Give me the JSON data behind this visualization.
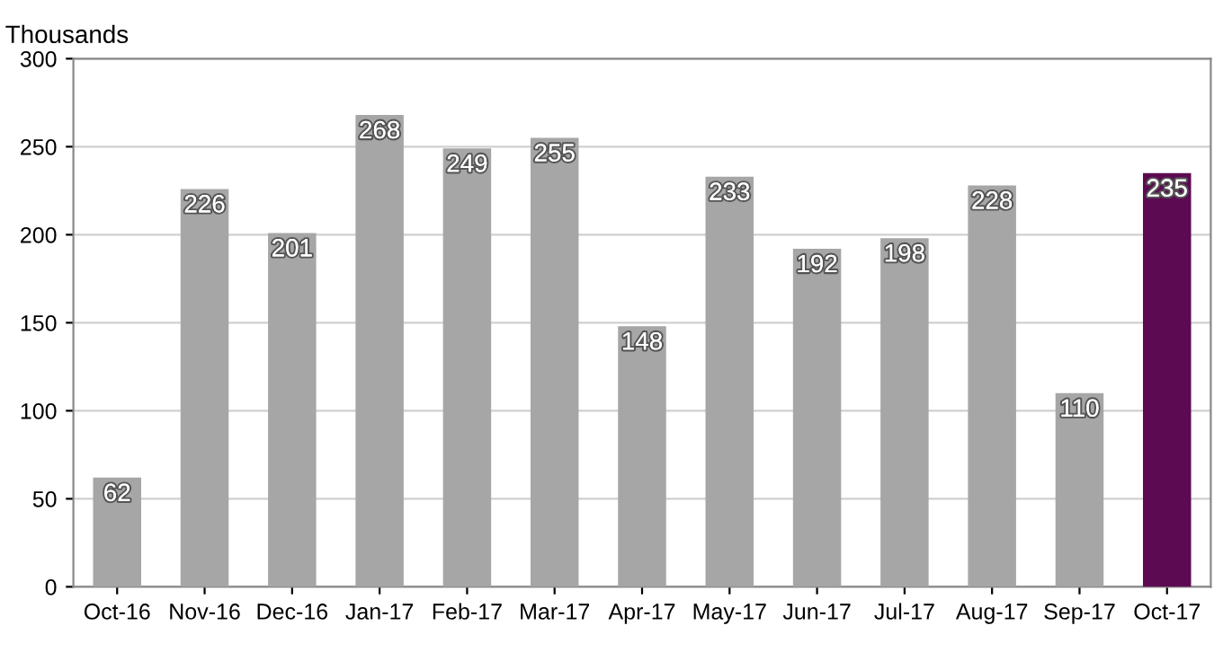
{
  "chart_data": {
    "type": "bar",
    "ylabel": "Thousands",
    "categories": [
      "Oct-16",
      "Nov-16",
      "Dec-16",
      "Jan-17",
      "Feb-17",
      "Mar-17",
      "Apr-17",
      "May-17",
      "Jun-17",
      "Jul-17",
      "Aug-17",
      "Sep-17",
      "Oct-17"
    ],
    "values": [
      62,
      226,
      201,
      268,
      249,
      255,
      148,
      233,
      192,
      198,
      228,
      110,
      235
    ],
    "colors": [
      "#a6a6a6",
      "#a6a6a6",
      "#a6a6a6",
      "#a6a6a6",
      "#a6a6a6",
      "#a6a6a6",
      "#a6a6a6",
      "#a6a6a6",
      "#a6a6a6",
      "#a6a6a6",
      "#a6a6a6",
      "#a6a6a6",
      "#5c0a52"
    ],
    "ylim": [
      0,
      300
    ],
    "yticks": [
      0,
      50,
      100,
      150,
      200,
      250,
      300
    ],
    "grid": "y",
    "data_labels": true
  }
}
